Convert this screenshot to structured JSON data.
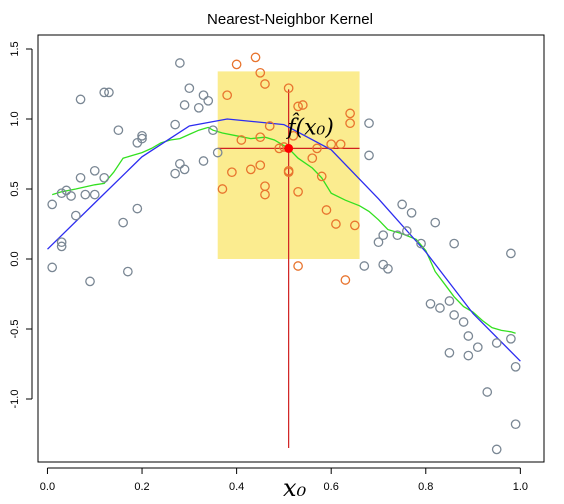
{
  "chart_data": {
    "type": "scatter",
    "title": "Nearest-Neighbor Kernel",
    "xlabel": "",
    "ylabel": "",
    "xlim": [
      -0.02,
      1.05
    ],
    "ylim": [
      -1.45,
      1.6
    ],
    "x_ticks": [
      {
        "value": 0.0,
        "label": "0.0"
      },
      {
        "value": 0.2,
        "label": "0.2"
      },
      {
        "value": 0.4,
        "label": "0.4"
      },
      {
        "value": 0.6,
        "label": "0.6"
      },
      {
        "value": 0.8,
        "label": "0.8"
      },
      {
        "value": 1.0,
        "label": "1.0"
      }
    ],
    "y_ticks": [
      {
        "value": -1.0,
        "label": "-1.0"
      },
      {
        "value": -0.5,
        "label": "-0.5"
      },
      {
        "value": 0.0,
        "label": "0.0"
      },
      {
        "value": 0.5,
        "label": "0.5"
      },
      {
        "value": 1.0,
        "label": "1.0"
      },
      {
        "value": 1.5,
        "label": "1.5"
      }
    ],
    "neighborhood": {
      "x0": 0.36,
      "x1": 0.66,
      "y0": 0.0,
      "y1": 1.34,
      "color": "#fbec8f"
    },
    "target": {
      "x": 0.51,
      "y": 0.79,
      "label_x": "x₀",
      "label_fhat": "f̂(x₀)"
    },
    "points_outside": [
      [
        0.01,
        0.39
      ],
      [
        0.01,
        -0.06
      ],
      [
        0.03,
        0.12
      ],
      [
        0.03,
        0.09
      ],
      [
        0.03,
        0.47
      ],
      [
        0.04,
        0.49
      ],
      [
        0.05,
        0.45
      ],
      [
        0.06,
        0.31
      ],
      [
        0.07,
        1.14
      ],
      [
        0.07,
        0.58
      ],
      [
        0.08,
        0.46
      ],
      [
        0.09,
        -0.16
      ],
      [
        0.1,
        0.46
      ],
      [
        0.1,
        0.63
      ],
      [
        0.12,
        1.19
      ],
      [
        0.12,
        0.58
      ],
      [
        0.13,
        1.19
      ],
      [
        0.15,
        0.92
      ],
      [
        0.16,
        0.26
      ],
      [
        0.17,
        -0.09
      ],
      [
        0.19,
        0.36
      ],
      [
        0.19,
        0.83
      ],
      [
        0.2,
        0.86
      ],
      [
        0.2,
        0.88
      ],
      [
        0.27,
        0.61
      ],
      [
        0.27,
        0.96
      ],
      [
        0.28,
        0.68
      ],
      [
        0.28,
        1.4
      ],
      [
        0.29,
        1.1
      ],
      [
        0.29,
        0.64
      ],
      [
        0.3,
        1.22
      ],
      [
        0.32,
        1.08
      ],
      [
        0.33,
        1.17
      ],
      [
        0.33,
        0.7
      ],
      [
        0.34,
        1.13
      ],
      [
        0.35,
        0.92
      ],
      [
        0.36,
        0.76
      ],
      [
        0.67,
        -0.05
      ],
      [
        0.68,
        0.97
      ],
      [
        0.68,
        0.74
      ],
      [
        0.7,
        0.12
      ],
      [
        0.71,
        0.17
      ],
      [
        0.71,
        -0.04
      ],
      [
        0.72,
        -0.07
      ],
      [
        0.74,
        0.17
      ],
      [
        0.75,
        0.39
      ],
      [
        0.76,
        0.2
      ],
      [
        0.77,
        0.33
      ],
      [
        0.79,
        0.11
      ],
      [
        0.81,
        -0.32
      ],
      [
        0.82,
        0.26
      ],
      [
        0.83,
        -0.35
      ],
      [
        0.85,
        -0.3
      ],
      [
        0.85,
        -0.67
      ],
      [
        0.86,
        0.11
      ],
      [
        0.86,
        -0.4
      ],
      [
        0.88,
        -0.45
      ],
      [
        0.89,
        -0.55
      ],
      [
        0.89,
        -0.69
      ],
      [
        0.91,
        -0.63
      ],
      [
        0.93,
        -0.95
      ],
      [
        0.95,
        -1.36
      ],
      [
        0.95,
        -0.6
      ],
      [
        0.98,
        0.04
      ],
      [
        0.98,
        -0.57
      ],
      [
        0.99,
        -1.18
      ],
      [
        0.99,
        -0.77
      ]
    ],
    "points_inside": [
      [
        0.37,
        0.5
      ],
      [
        0.38,
        1.17
      ],
      [
        0.39,
        0.62
      ],
      [
        0.4,
        1.39
      ],
      [
        0.41,
        0.85
      ],
      [
        0.43,
        0.64
      ],
      [
        0.44,
        1.44
      ],
      [
        0.45,
        0.67
      ],
      [
        0.45,
        0.87
      ],
      [
        0.45,
        1.33
      ],
      [
        0.46,
        0.52
      ],
      [
        0.46,
        0.46
      ],
      [
        0.46,
        1.25
      ],
      [
        0.47,
        0.95
      ],
      [
        0.49,
        0.79
      ],
      [
        0.5,
        0.8
      ],
      [
        0.51,
        0.63
      ],
      [
        0.51,
        0.62
      ],
      [
        0.51,
        1.22
      ],
      [
        0.52,
        0.88
      ],
      [
        0.53,
        1.09
      ],
      [
        0.53,
        0.48
      ],
      [
        0.53,
        -0.05
      ],
      [
        0.54,
        1.1
      ],
      [
        0.56,
        0.72
      ],
      [
        0.57,
        0.79
      ],
      [
        0.58,
        0.59
      ],
      [
        0.59,
        0.35
      ],
      [
        0.6,
        0.82
      ],
      [
        0.61,
        0.25
      ],
      [
        0.62,
        0.82
      ],
      [
        0.63,
        -0.15
      ],
      [
        0.64,
        1.04
      ],
      [
        0.64,
        0.97
      ],
      [
        0.65,
        0.24
      ]
    ],
    "fit_curve": [
      [
        0.0,
        0.07
      ],
      [
        0.1,
        0.4
      ],
      [
        0.2,
        0.73
      ],
      [
        0.3,
        0.95
      ],
      [
        0.38,
        1.0
      ],
      [
        0.5,
        0.96
      ],
      [
        0.6,
        0.78
      ],
      [
        0.7,
        0.43
      ],
      [
        0.8,
        0.05
      ],
      [
        0.9,
        -0.39
      ],
      [
        1.0,
        -0.73
      ]
    ],
    "knn_curve": [
      [
        0.01,
        0.46
      ],
      [
        0.03,
        0.48
      ],
      [
        0.06,
        0.5
      ],
      [
        0.1,
        0.53
      ],
      [
        0.12,
        0.54
      ],
      [
        0.14,
        0.62
      ],
      [
        0.16,
        0.72
      ],
      [
        0.18,
        0.74
      ],
      [
        0.2,
        0.76
      ],
      [
        0.22,
        0.79
      ],
      [
        0.24,
        0.83
      ],
      [
        0.26,
        0.85
      ],
      [
        0.28,
        0.86
      ],
      [
        0.3,
        0.89
      ],
      [
        0.32,
        0.92
      ],
      [
        0.34,
        0.94
      ],
      [
        0.35,
        0.92
      ],
      [
        0.37,
        0.9
      ],
      [
        0.4,
        0.88
      ],
      [
        0.43,
        0.86
      ],
      [
        0.46,
        0.87
      ],
      [
        0.48,
        0.85
      ],
      [
        0.51,
        0.79
      ],
      [
        0.53,
        0.72
      ],
      [
        0.56,
        0.65
      ],
      [
        0.58,
        0.58
      ],
      [
        0.6,
        0.47
      ],
      [
        0.63,
        0.42
      ],
      [
        0.66,
        0.38
      ],
      [
        0.68,
        0.34
      ],
      [
        0.7,
        0.28
      ],
      [
        0.72,
        0.21
      ],
      [
        0.75,
        0.18
      ],
      [
        0.78,
        0.14
      ],
      [
        0.8,
        0.06
      ],
      [
        0.82,
        -0.09
      ],
      [
        0.84,
        -0.18
      ],
      [
        0.86,
        -0.27
      ],
      [
        0.88,
        -0.34
      ],
      [
        0.9,
        -0.38
      ],
      [
        0.92,
        -0.44
      ],
      [
        0.94,
        -0.49
      ],
      [
        0.96,
        -0.51
      ],
      [
        0.98,
        -0.52
      ],
      [
        0.99,
        -0.53
      ]
    ],
    "colors": {
      "outside_points": "#7a8794",
      "inside_points": "#e8742e",
      "fit_curve": "#2d2df0",
      "knn_curve": "#33e020",
      "crosshair": "#d02020",
      "target_point": "#ff0000"
    },
    "grid": false,
    "legend": "none"
  }
}
